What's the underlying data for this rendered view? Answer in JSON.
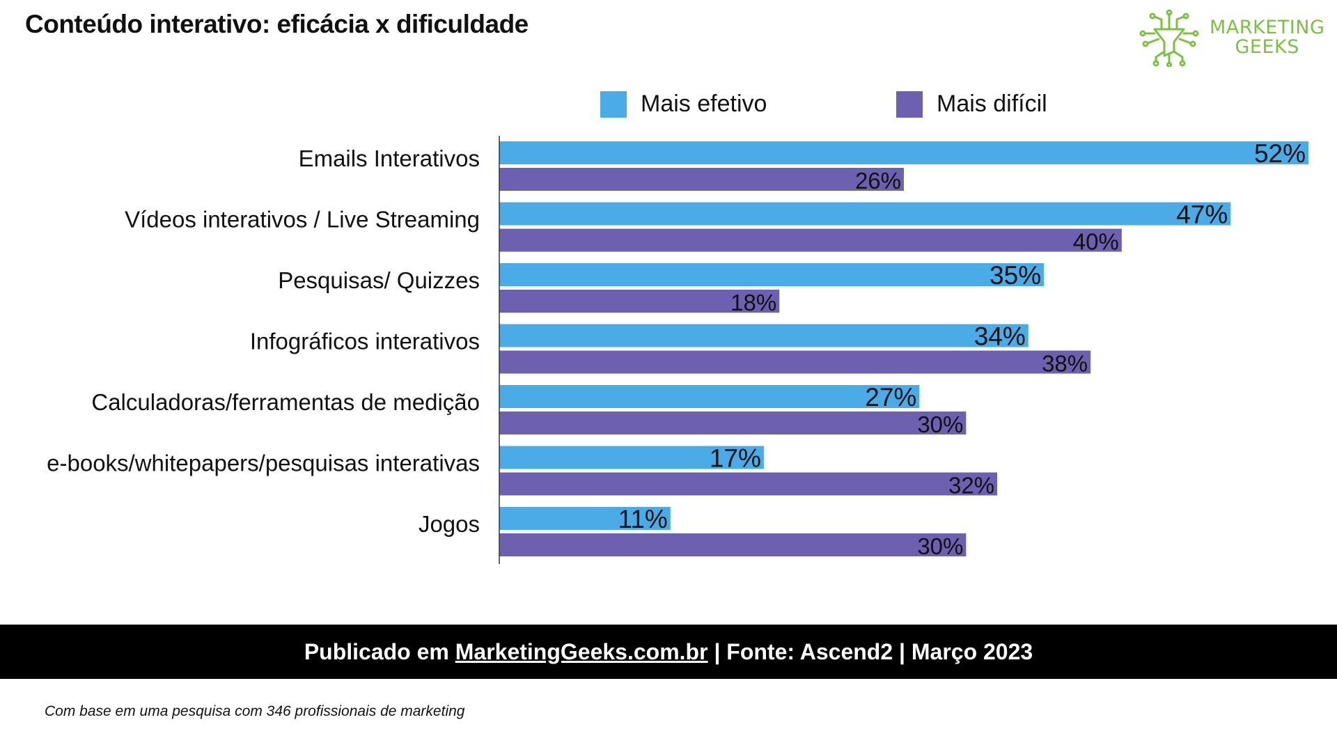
{
  "header": {
    "title": "Conteúdo interativo: eficácia x dificuldade"
  },
  "logo": {
    "line1": "MARKETING",
    "line2": "GEEKS",
    "icon": "funnel-circuit-icon"
  },
  "colors": {
    "effective": "#4aabe7",
    "difficult": "#6e60b0",
    "logo_green": "#7ac142"
  },
  "chart_data": {
    "type": "bar",
    "orientation": "horizontal",
    "title": "Conteúdo interativo: eficácia x dificuldade",
    "categories": [
      "Emails Interativos",
      "Vídeos interativos / Live Streaming",
      "Pesquisas/ Quizzes",
      "Infográficos interativos",
      "Calculadoras/ferramentas de medição",
      "e-books/whitepapers/pesquisas interativas",
      "Jogos"
    ],
    "series": [
      {
        "name": "Mais efetivo",
        "values": [
          52,
          47,
          35,
          34,
          27,
          17,
          11
        ]
      },
      {
        "name": "Mais difícil",
        "values": [
          26,
          40,
          18,
          38,
          30,
          32,
          30
        ]
      }
    ],
    "value_suffix": "%",
    "xlim": [
      0,
      52
    ],
    "legend_position": "top",
    "grid": false
  },
  "footer": {
    "prefix": "Publicado em ",
    "link_text": "MarketingGeeks.com.br",
    "suffix": " | Fonte: Ascend2 | Março 2023"
  },
  "note": "Com base em uma pesquisa com 346 profissionais de marketing"
}
